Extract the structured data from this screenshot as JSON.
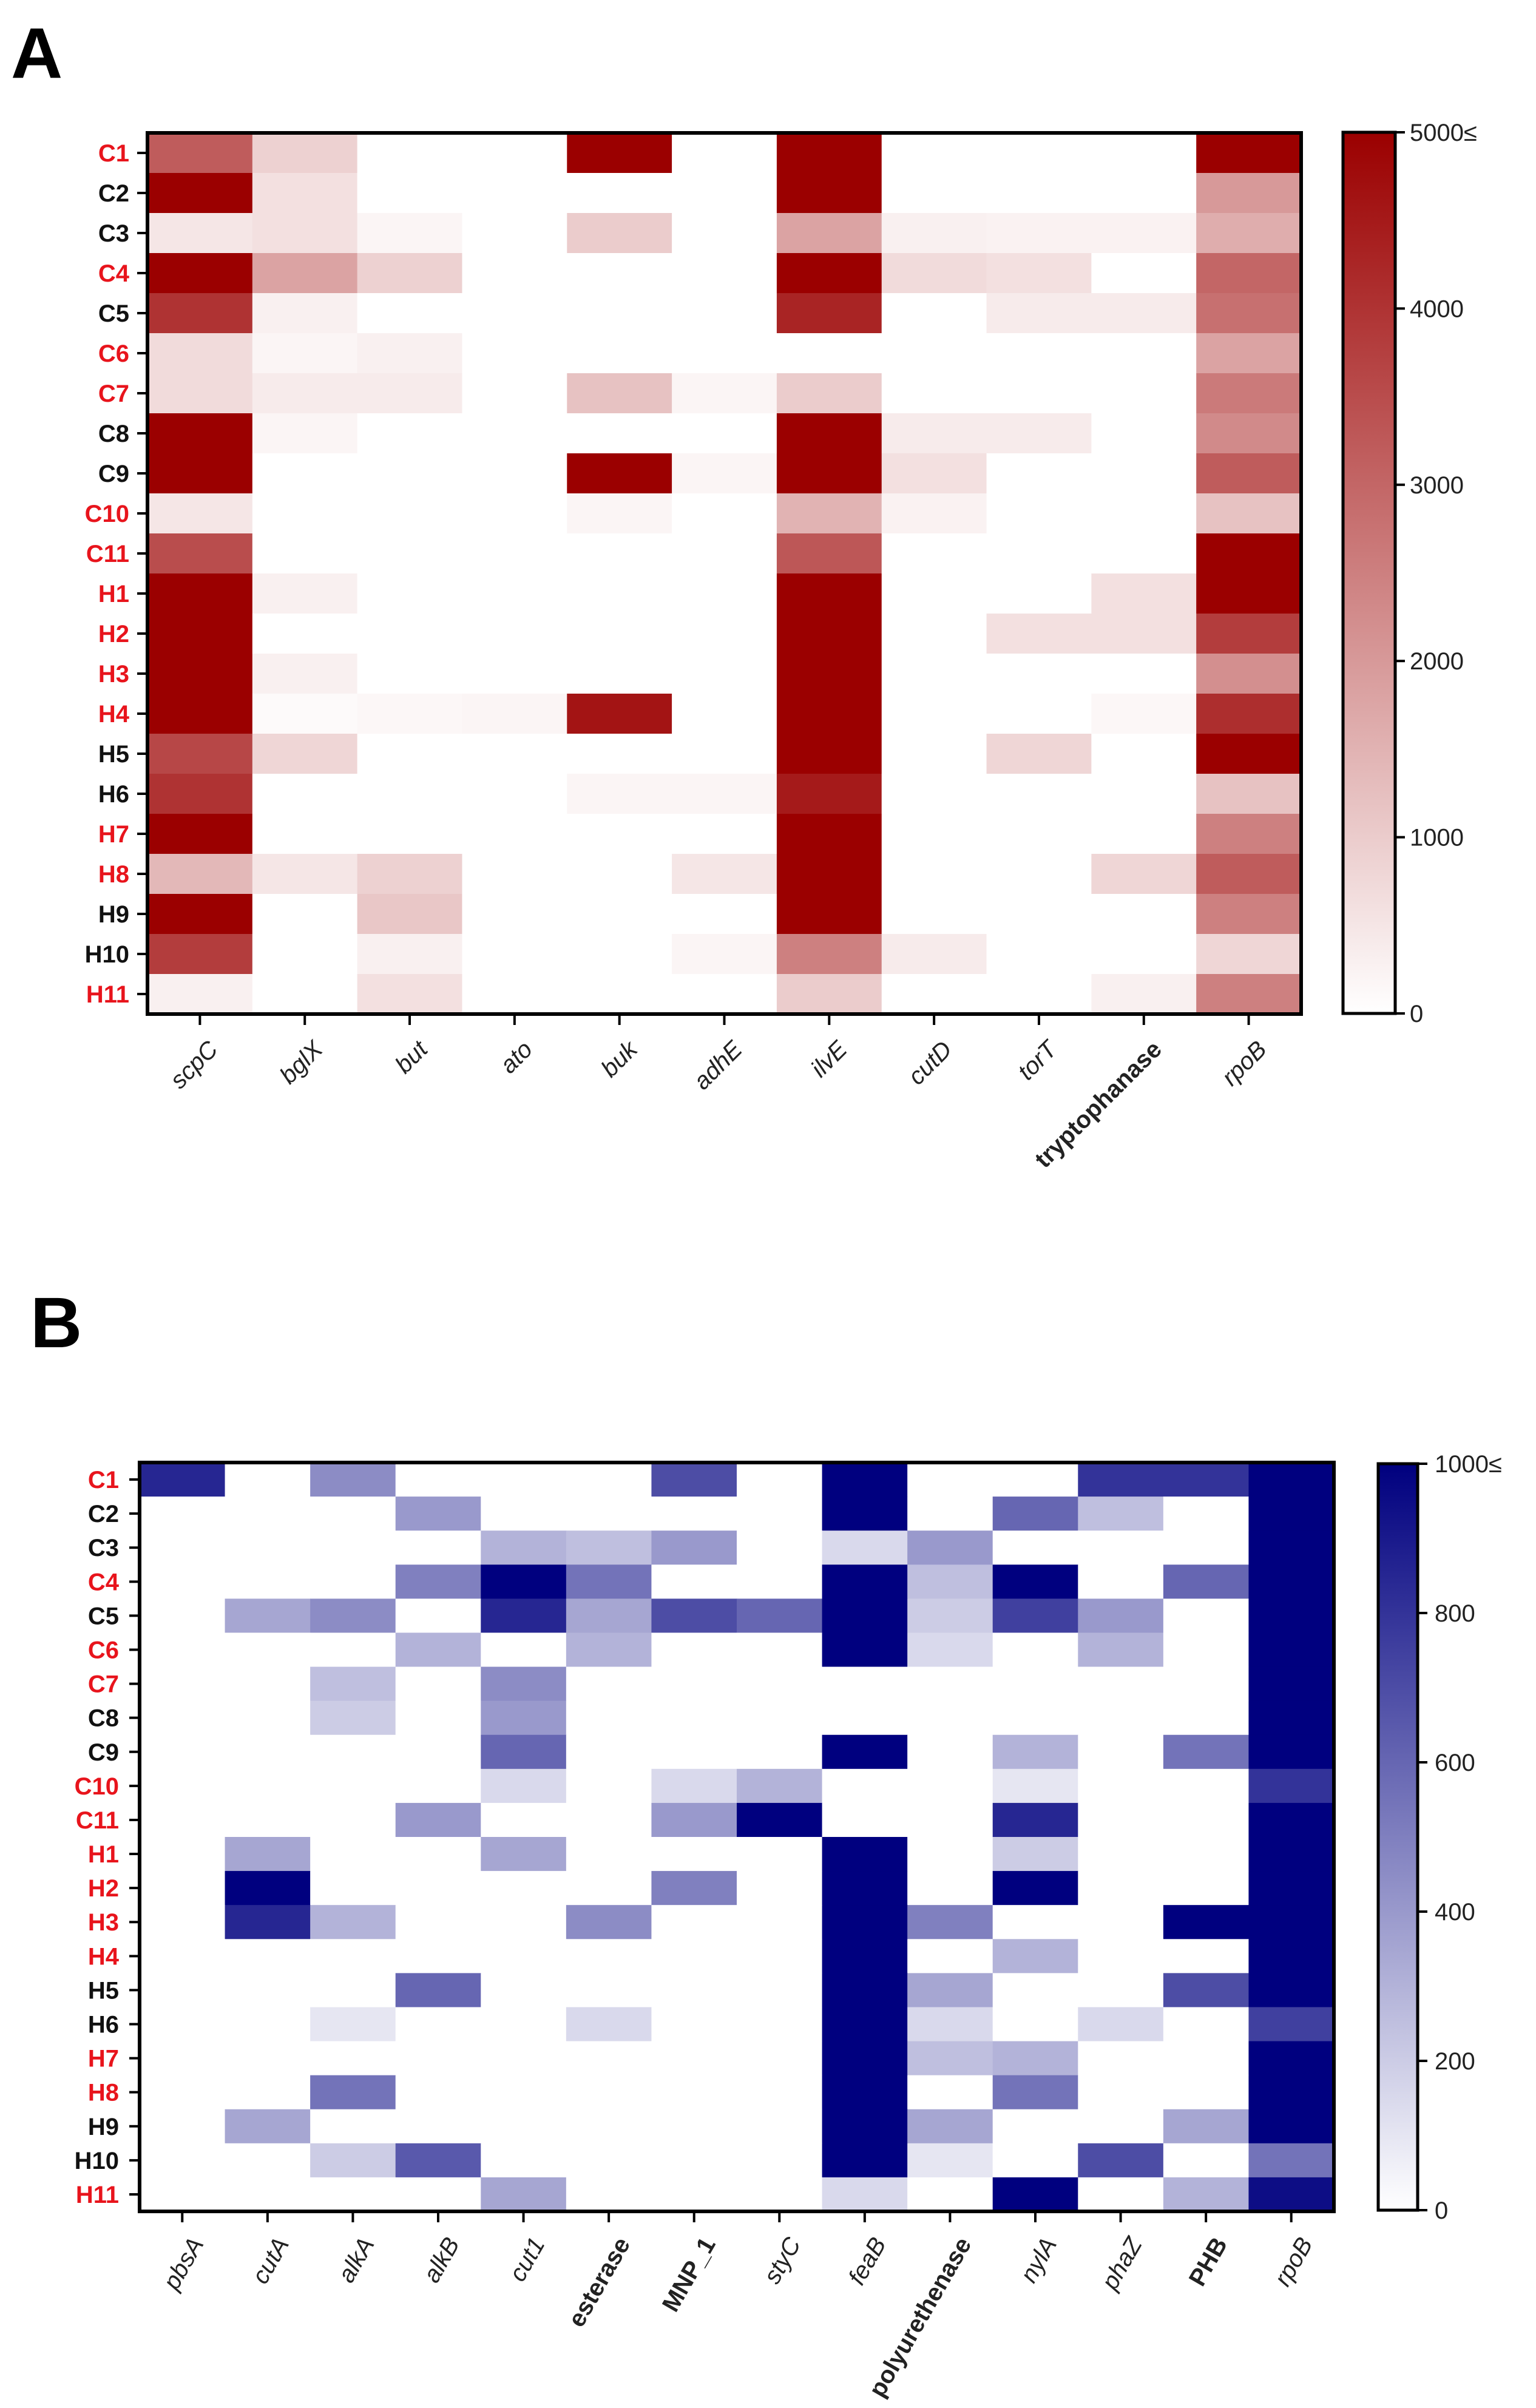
{
  "chart_data": [
    {
      "type": "heatmap",
      "panel_label": "A",
      "title": "",
      "xlabel": "",
      "ylabel": "",
      "color_low": "#ffffff",
      "color_high": "#9b0000",
      "highlight_color": "#e8141c",
      "rows": [
        {
          "label": "C1",
          "highlight": true
        },
        {
          "label": "C2",
          "highlight": false
        },
        {
          "label": "C3",
          "highlight": false
        },
        {
          "label": "C4",
          "highlight": true
        },
        {
          "label": "C5",
          "highlight": false
        },
        {
          "label": "C6",
          "highlight": true
        },
        {
          "label": "C7",
          "highlight": true
        },
        {
          "label": "C8",
          "highlight": false
        },
        {
          "label": "C9",
          "highlight": false
        },
        {
          "label": "C10",
          "highlight": true
        },
        {
          "label": "C11",
          "highlight": true
        },
        {
          "label": "H1",
          "highlight": true
        },
        {
          "label": "H2",
          "highlight": true
        },
        {
          "label": "H3",
          "highlight": true
        },
        {
          "label": "H4",
          "highlight": true
        },
        {
          "label": "H5",
          "highlight": false
        },
        {
          "label": "H6",
          "highlight": false
        },
        {
          "label": "H7",
          "highlight": true
        },
        {
          "label": "H8",
          "highlight": true
        },
        {
          "label": "H9",
          "highlight": false
        },
        {
          "label": "H10",
          "highlight": false
        },
        {
          "label": "H11",
          "highlight": true
        }
      ],
      "columns": [
        {
          "label": "scpC",
          "style": "italic"
        },
        {
          "label": "bglX",
          "style": "italic"
        },
        {
          "label": "but",
          "style": "italic"
        },
        {
          "label": "ato",
          "style": "italic"
        },
        {
          "label": "buk",
          "style": "italic"
        },
        {
          "label": "adhE",
          "style": "italic"
        },
        {
          "label": "ilvE",
          "style": "italic"
        },
        {
          "label": "cutD",
          "style": "italic"
        },
        {
          "label": "torT",
          "style": "italic"
        },
        {
          "label": "tryptophanase",
          "style": "bold"
        },
        {
          "label": "rpoB",
          "style": "italic"
        }
      ],
      "values": [
        [
          3200,
          900,
          0,
          0,
          5000,
          0,
          5000,
          0,
          0,
          0,
          5000
        ],
        [
          5000,
          600,
          0,
          0,
          0,
          0,
          5000,
          0,
          0,
          0,
          2000
        ],
        [
          500,
          600,
          200,
          0,
          1000,
          0,
          1800,
          300,
          250,
          250,
          1600
        ],
        [
          5000,
          1800,
          900,
          0,
          0,
          0,
          5000,
          700,
          600,
          0,
          3000
        ],
        [
          4000,
          300,
          0,
          0,
          0,
          0,
          4300,
          0,
          400,
          400,
          2800
        ],
        [
          700,
          200,
          300,
          0,
          0,
          0,
          0,
          0,
          0,
          0,
          1800
        ],
        [
          700,
          400,
          400,
          0,
          1200,
          200,
          1000,
          0,
          0,
          0,
          2600
        ],
        [
          5000,
          200,
          0,
          0,
          0,
          0,
          5000,
          400,
          400,
          0,
          2300
        ],
        [
          5000,
          0,
          0,
          0,
          5000,
          200,
          5000,
          600,
          0,
          0,
          3200
        ],
        [
          500,
          0,
          0,
          0,
          200,
          0,
          1500,
          250,
          0,
          0,
          1200
        ],
        [
          3500,
          0,
          0,
          0,
          0,
          0,
          3300,
          0,
          0,
          0,
          5000
        ],
        [
          5000,
          300,
          0,
          0,
          0,
          0,
          5000,
          0,
          0,
          600,
          5000
        ],
        [
          5000,
          0,
          0,
          0,
          0,
          0,
          5000,
          0,
          600,
          600,
          3800
        ],
        [
          5000,
          300,
          0,
          0,
          0,
          0,
          5000,
          0,
          0,
          0,
          2200
        ],
        [
          5000,
          100,
          150,
          200,
          4600,
          0,
          5000,
          0,
          0,
          150,
          4100
        ],
        [
          3600,
          800,
          0,
          0,
          0,
          0,
          5000,
          0,
          800,
          0,
          5000
        ],
        [
          4000,
          0,
          0,
          0,
          200,
          200,
          4500,
          0,
          0,
          0,
          1200
        ],
        [
          5000,
          0,
          0,
          0,
          0,
          0,
          5000,
          0,
          0,
          0,
          2500
        ],
        [
          1400,
          500,
          900,
          0,
          0,
          500,
          5000,
          0,
          0,
          800,
          3200
        ],
        [
          5000,
          0,
          1100,
          0,
          0,
          0,
          5000,
          0,
          0,
          0,
          2500
        ],
        [
          3800,
          0,
          300,
          0,
          0,
          200,
          2500,
          400,
          0,
          0,
          800
        ],
        [
          300,
          0,
          600,
          0,
          0,
          0,
          1000,
          0,
          0,
          300,
          2500
        ]
      ],
      "colorbar": {
        "min": 0,
        "max": 5000,
        "ticks": [
          0,
          1000,
          2000,
          3000,
          4000
        ],
        "max_label": "5000≤"
      }
    },
    {
      "type": "heatmap",
      "panel_label": "B",
      "title": "",
      "xlabel": "",
      "ylabel": "",
      "color_low": "#ffffff",
      "color_high": "#00007f",
      "highlight_color": "#e8141c",
      "rows": [
        {
          "label": "C1",
          "highlight": true
        },
        {
          "label": "C2",
          "highlight": false
        },
        {
          "label": "C3",
          "highlight": false
        },
        {
          "label": "C4",
          "highlight": true
        },
        {
          "label": "C5",
          "highlight": false
        },
        {
          "label": "C6",
          "highlight": true
        },
        {
          "label": "C7",
          "highlight": true
        },
        {
          "label": "C8",
          "highlight": false
        },
        {
          "label": "C9",
          "highlight": false
        },
        {
          "label": "C10",
          "highlight": true
        },
        {
          "label": "C11",
          "highlight": true
        },
        {
          "label": "H1",
          "highlight": true
        },
        {
          "label": "H2",
          "highlight": true
        },
        {
          "label": "H3",
          "highlight": true
        },
        {
          "label": "H4",
          "highlight": true
        },
        {
          "label": "H5",
          "highlight": false
        },
        {
          "label": "H6",
          "highlight": false
        },
        {
          "label": "H7",
          "highlight": true
        },
        {
          "label": "H8",
          "highlight": true
        },
        {
          "label": "H9",
          "highlight": false
        },
        {
          "label": "H10",
          "highlight": false
        },
        {
          "label": "H11",
          "highlight": true
        }
      ],
      "columns": [
        {
          "label": "pbsA",
          "style": "italic"
        },
        {
          "label": "cutA",
          "style": "italic"
        },
        {
          "label": "alkA",
          "style": "italic"
        },
        {
          "label": "alkB",
          "style": "italic"
        },
        {
          "label": "cut1",
          "style": "italic"
        },
        {
          "label": "esterase",
          "style": "bold"
        },
        {
          "label": "MNP_1",
          "style": "bold"
        },
        {
          "label": "styC",
          "style": "italic"
        },
        {
          "label": "feaB",
          "style": "italic"
        },
        {
          "label": "polyurethenase",
          "style": "bold"
        },
        {
          "label": "nylA",
          "style": "italic"
        },
        {
          "label": "phaZ",
          "style": "italic"
        },
        {
          "label": "PHB",
          "style": "bold"
        },
        {
          "label": "rpoB",
          "style": "italic"
        }
      ],
      "values": [
        [
          850,
          0,
          450,
          0,
          0,
          0,
          700,
          0,
          1000,
          0,
          0,
          800,
          800,
          1000
        ],
        [
          0,
          0,
          0,
          400,
          0,
          0,
          0,
          0,
          1000,
          0,
          600,
          250,
          0,
          1000
        ],
        [
          0,
          0,
          0,
          0,
          300,
          250,
          400,
          0,
          150,
          400,
          0,
          0,
          0,
          1000
        ],
        [
          0,
          0,
          0,
          500,
          1000,
          550,
          0,
          0,
          1000,
          250,
          1000,
          0,
          600,
          1000
        ],
        [
          0,
          350,
          450,
          0,
          850,
          350,
          700,
          600,
          1000,
          200,
          750,
          400,
          0,
          1000
        ],
        [
          0,
          0,
          0,
          300,
          0,
          300,
          0,
          0,
          1000,
          150,
          0,
          300,
          0,
          1000
        ],
        [
          0,
          0,
          250,
          0,
          450,
          0,
          0,
          0,
          0,
          0,
          0,
          0,
          0,
          1000
        ],
        [
          0,
          0,
          200,
          0,
          400,
          0,
          0,
          0,
          0,
          0,
          0,
          0,
          0,
          1000
        ],
        [
          0,
          0,
          0,
          0,
          600,
          0,
          0,
          0,
          1000,
          0,
          300,
          0,
          550,
          1000
        ],
        [
          0,
          0,
          0,
          0,
          150,
          0,
          150,
          300,
          0,
          0,
          100,
          0,
          0,
          800
        ],
        [
          0,
          0,
          0,
          400,
          0,
          0,
          400,
          1000,
          0,
          0,
          850,
          0,
          0,
          1000
        ],
        [
          0,
          350,
          0,
          0,
          350,
          0,
          0,
          0,
          1000,
          0,
          200,
          0,
          0,
          1000
        ],
        [
          0,
          1000,
          0,
          0,
          0,
          0,
          500,
          0,
          1000,
          0,
          1000,
          0,
          0,
          1000
        ],
        [
          0,
          850,
          300,
          0,
          0,
          450,
          0,
          0,
          1000,
          500,
          0,
          0,
          1000,
          1000
        ],
        [
          0,
          0,
          0,
          0,
          0,
          0,
          0,
          0,
          1000,
          0,
          300,
          0,
          0,
          1000
        ],
        [
          0,
          0,
          0,
          600,
          0,
          0,
          0,
          0,
          1000,
          350,
          0,
          0,
          700,
          1000
        ],
        [
          0,
          0,
          100,
          0,
          0,
          150,
          0,
          0,
          1000,
          150,
          0,
          150,
          0,
          750
        ],
        [
          0,
          0,
          0,
          0,
          0,
          0,
          0,
          0,
          1000,
          250,
          300,
          0,
          0,
          1000
        ],
        [
          0,
          0,
          550,
          0,
          0,
          0,
          0,
          0,
          1000,
          0,
          550,
          0,
          0,
          1000
        ],
        [
          0,
          350,
          0,
          0,
          0,
          0,
          0,
          0,
          1000,
          350,
          0,
          0,
          350,
          1000
        ],
        [
          0,
          0,
          200,
          650,
          0,
          0,
          0,
          0,
          1000,
          100,
          0,
          700,
          0,
          550
        ],
        [
          0,
          0,
          0,
          0,
          350,
          0,
          0,
          0,
          150,
          0,
          1000,
          0,
          300,
          950
        ]
      ],
      "colorbar": {
        "min": 0,
        "max": 1000,
        "ticks": [
          0,
          200,
          400,
          600,
          800
        ],
        "max_label": "1000≤"
      }
    }
  ]
}
